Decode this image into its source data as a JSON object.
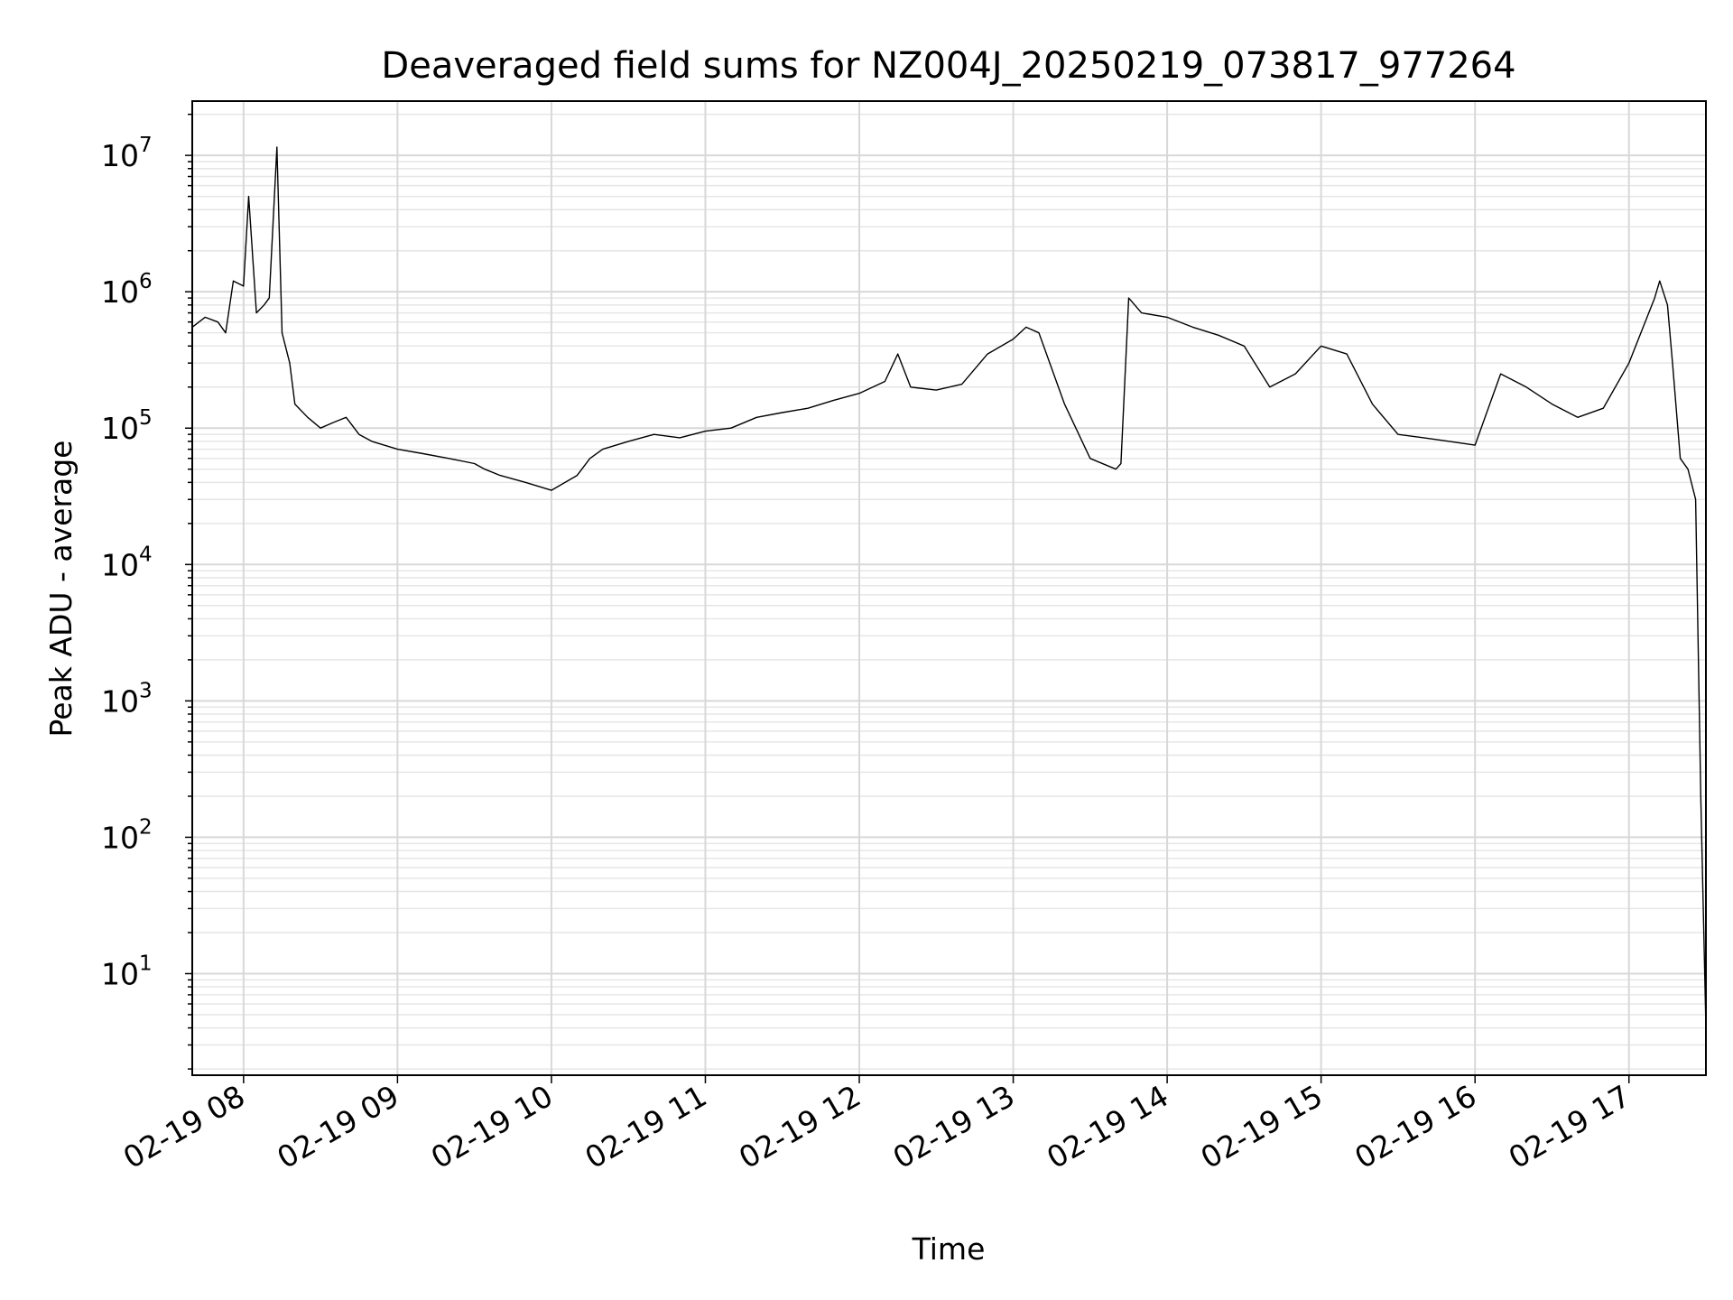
{
  "chart_data": {
    "type": "line",
    "title": "Deaveraged field sums for NZ004J_20250219_073817_977264",
    "xlabel": "Time",
    "ylabel": "Peak ADU - average",
    "yscale": "log",
    "grid": "on",
    "legend": "none",
    "line_color": "#000000",
    "xlim": [
      "2025-02-19 07:40",
      "2025-02-19 17:30"
    ],
    "ylim": [
      1.8,
      25000000
    ],
    "x_tick_labels": [
      "02-19 08",
      "02-19 09",
      "02-19 10",
      "02-19 11",
      "02-19 12",
      "02-19 13",
      "02-19 14",
      "02-19 15",
      "02-19 16",
      "02-19 17"
    ],
    "x_tick_values": [
      "2025-02-19 08:00",
      "2025-02-19 09:00",
      "2025-02-19 10:00",
      "2025-02-19 11:00",
      "2025-02-19 12:00",
      "2025-02-19 13:00",
      "2025-02-19 14:00",
      "2025-02-19 15:00",
      "2025-02-19 16:00",
      "2025-02-19 17:00"
    ],
    "y_tick_labels": [
      {
        "base": "10",
        "exp": "1"
      },
      {
        "base": "10",
        "exp": "2"
      },
      {
        "base": "10",
        "exp": "3"
      },
      {
        "base": "10",
        "exp": "4"
      },
      {
        "base": "10",
        "exp": "5"
      },
      {
        "base": "10",
        "exp": "6"
      },
      {
        "base": "10",
        "exp": "7"
      }
    ],
    "y_tick_values": [
      10,
      100,
      1000,
      10000,
      100000,
      1000000,
      10000000
    ],
    "series": [
      {
        "x": [
          "2025-02-19 07:40",
          "2025-02-19 07:45",
          "2025-02-19 07:50",
          "2025-02-19 07:53",
          "2025-02-19 07:56",
          "2025-02-19 08:00",
          "2025-02-19 08:02",
          "2025-02-19 08:05",
          "2025-02-19 08:08",
          "2025-02-19 08:10",
          "2025-02-19 08:13",
          "2025-02-19 08:15",
          "2025-02-19 08:18",
          "2025-02-19 08:20",
          "2025-02-19 08:25",
          "2025-02-19 08:30",
          "2025-02-19 08:35",
          "2025-02-19 08:40",
          "2025-02-19 08:45",
          "2025-02-19 08:50",
          "2025-02-19 09:00",
          "2025-02-19 09:10",
          "2025-02-19 09:20",
          "2025-02-19 09:30",
          "2025-02-19 09:34",
          "2025-02-19 09:40",
          "2025-02-19 09:50",
          "2025-02-19 10:00",
          "2025-02-19 10:10",
          "2025-02-19 10:15",
          "2025-02-19 10:20",
          "2025-02-19 10:30",
          "2025-02-19 10:40",
          "2025-02-19 10:50",
          "2025-02-19 11:00",
          "2025-02-19 11:10",
          "2025-02-19 11:20",
          "2025-02-19 11:30",
          "2025-02-19 11:40",
          "2025-02-19 11:50",
          "2025-02-19 12:00",
          "2025-02-19 12:10",
          "2025-02-19 12:15",
          "2025-02-19 12:20",
          "2025-02-19 12:30",
          "2025-02-19 12:40",
          "2025-02-19 12:50",
          "2025-02-19 13:00",
          "2025-02-19 13:05",
          "2025-02-19 13:10",
          "2025-02-19 13:20",
          "2025-02-19 13:30",
          "2025-02-19 13:40",
          "2025-02-19 13:42",
          "2025-02-19 13:45",
          "2025-02-19 13:50",
          "2025-02-19 14:00",
          "2025-02-19 14:10",
          "2025-02-19 14:20",
          "2025-02-19 14:30",
          "2025-02-19 14:40",
          "2025-02-19 14:50",
          "2025-02-19 15:00",
          "2025-02-19 15:10",
          "2025-02-19 15:20",
          "2025-02-19 15:30",
          "2025-02-19 15:40",
          "2025-02-19 15:50",
          "2025-02-19 16:00",
          "2025-02-19 16:10",
          "2025-02-19 16:20",
          "2025-02-19 16:30",
          "2025-02-19 16:40",
          "2025-02-19 16:50",
          "2025-02-19 17:00",
          "2025-02-19 17:10",
          "2025-02-19 17:12",
          "2025-02-19 17:15",
          "2025-02-19 17:17",
          "2025-02-19 17:20",
          "2025-02-19 17:23",
          "2025-02-19 17:26",
          "2025-02-19 17:28",
          "2025-02-19 17:30"
        ],
        "y": [
          550000,
          650000,
          600000,
          500000,
          1200000,
          1100000,
          5000000,
          700000,
          800000,
          900000,
          11500000,
          500000,
          300000,
          150000,
          120000,
          100000,
          110000,
          120000,
          90000,
          80000,
          70000,
          65000,
          60000,
          55000,
          50000,
          45000,
          40000,
          35000,
          45000,
          60000,
          70000,
          80000,
          90000,
          85000,
          95000,
          100000,
          120000,
          130000,
          140000,
          160000,
          180000,
          220000,
          350000,
          200000,
          190000,
          210000,
          350000,
          450000,
          550000,
          500000,
          150000,
          60000,
          50000,
          55000,
          900000,
          700000,
          650000,
          550000,
          480000,
          400000,
          200000,
          250000,
          400000,
          350000,
          150000,
          90000,
          85000,
          80000,
          75000,
          250000,
          200000,
          150000,
          120000,
          140000,
          300000,
          900000,
          1200000,
          800000,
          300000,
          60000,
          50000,
          30000,
          200,
          4
        ]
      }
    ]
  }
}
